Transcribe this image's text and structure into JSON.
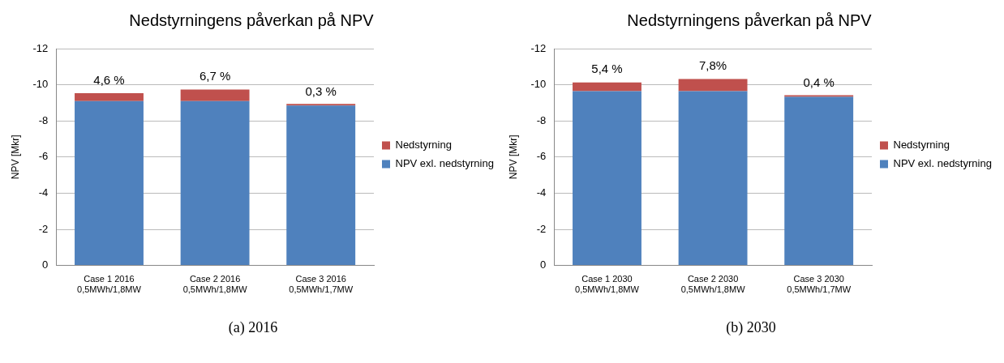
{
  "chart_data": [
    {
      "type": "bar",
      "stacked": true,
      "title": "Nedstyrningens påverkan på NPV",
      "ylabel": "NPV [Mkr]",
      "categories": [
        "Case 1 2016\n0,5MWh/1,8MW",
        "Case 2 2016\n0,5MWh/1,8MW",
        "Case 3 2016\n0,5MWh/1,7MW"
      ],
      "series": [
        {
          "name": "NPV exl. nedstyrning",
          "color": "#4f81bd",
          "values": [
            -9.1,
            -9.1,
            -8.85
          ]
        },
        {
          "name": "Nedstyrning",
          "color": "#c0504d",
          "values": [
            -0.43,
            -0.64,
            -0.03
          ]
        }
      ],
      "ylim": [
        0,
        -12
      ],
      "yticks": [
        0,
        -2,
        -4,
        -6,
        -8,
        -10,
        -12
      ],
      "grid": "y",
      "legend": "right",
      "annotations": [
        {
          "text": "4,6 %",
          "x": "Case 1 2016\n0,5MWh/1,8MW",
          "y": -9.53
        },
        {
          "text": "6,7 %",
          "x": "Case 2 2016\n0,5MWh/1,8MW",
          "y": -9.74
        },
        {
          "text": "0,3 %",
          "x": "Case 3 2016\n0,5MWh/1,7MW",
          "y": -8.88
        },
        "(a) 2016"
      ]
    },
    {
      "type": "bar",
      "stacked": true,
      "title": "Nedstyrningens påverkan på NPV",
      "ylabel": "NPV [Mkr]",
      "categories": [
        "Case 1 2030\n0,5MWh/1,8MW",
        "Case 2 2030\n0,5MWh/1,8MW",
        "Case 3 2030\n0,5MWh/1,7MW"
      ],
      "series": [
        {
          "name": "NPV exl. nedstyrning",
          "color": "#4f81bd",
          "values": [
            -9.65,
            -9.65,
            -9.33
          ]
        },
        {
          "name": "Nedstyrning",
          "color": "#c0504d",
          "values": [
            -0.48,
            -0.67,
            -0.05
          ]
        }
      ],
      "ylim": [
        0,
        -12
      ],
      "yticks": [
        0,
        -2,
        -4,
        -6,
        -8,
        -10,
        -12
      ],
      "grid": "y",
      "legend": "right",
      "annotations": [
        {
          "text": "5,4 %",
          "x": "Case 1 2030\n0,5MWh/1,8MW",
          "y": -10.13
        },
        {
          "text": "7,8%",
          "x": "Case 2 2030\n0,5MWh/1,8MW",
          "y": -10.32
        },
        {
          "text": "0,4 %",
          "x": "Case 3 2030\n0,5MWh/1,7MW",
          "y": -9.38
        },
        "(b) 2030"
      ]
    }
  ]
}
